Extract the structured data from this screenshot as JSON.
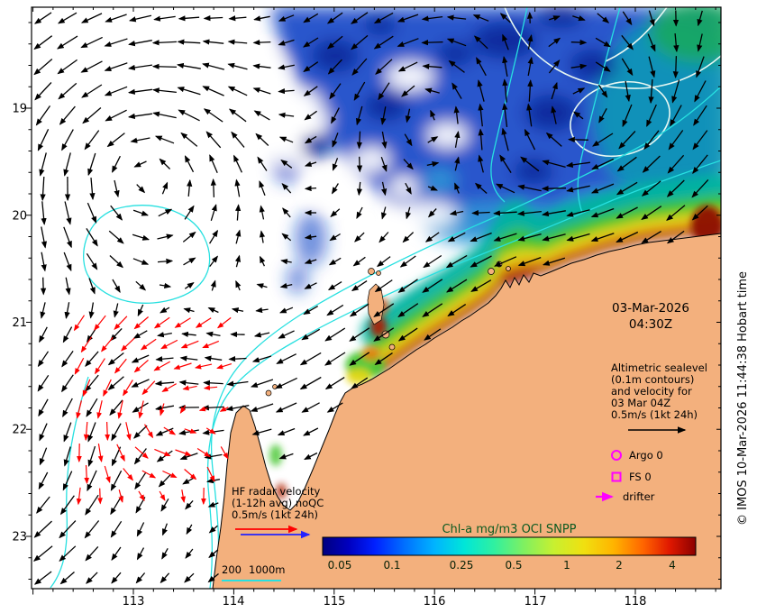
{
  "map": {
    "date_line1": "03-Mar-2026",
    "date_line2": "04:30Z"
  },
  "axes": {
    "x_ticks": [
      "113",
      "114",
      "115",
      "116",
      "117",
      "118"
    ],
    "y_ticks": [
      "19",
      "20",
      "21",
      "22",
      "23"
    ]
  },
  "legends": {
    "altimetric": {
      "lines": [
        "Altimetric sealevel",
        "(0.1m contours)",
        "and velocity for",
        "03 Mar 04Z",
        "0.5m/s (1kt 24h)"
      ]
    },
    "argo_label": "Argo 0",
    "fs_label": "FS 0",
    "drifter_label": "drifter",
    "hf": {
      "lines": [
        "HF radar velocity",
        "(1-12h avg) noQC",
        "0.5m/s (1kt 24h)"
      ]
    },
    "depth": {
      "d200": "200",
      "d1000": "1000m"
    }
  },
  "colorbar": {
    "title": "Chl-a mg/m3 OCI SNPP",
    "ticks": [
      "0.05",
      "0.1",
      "0.25",
      "0.5",
      "1",
      "2",
      "4"
    ]
  },
  "footer": {
    "copyright": "© IMOS 10-Mar-2026 11:44:38 Hobart time"
  },
  "colors": {
    "land": "#f3b07d",
    "depth_contour": "#27e0e0",
    "sealevel_contour": "#e6f7f2",
    "hf_arrow_red": "#ff0000",
    "hf_arrow_blue": "#2222ff",
    "marker_magenta": "#ff00ff",
    "vector_black": "#000000"
  }
}
